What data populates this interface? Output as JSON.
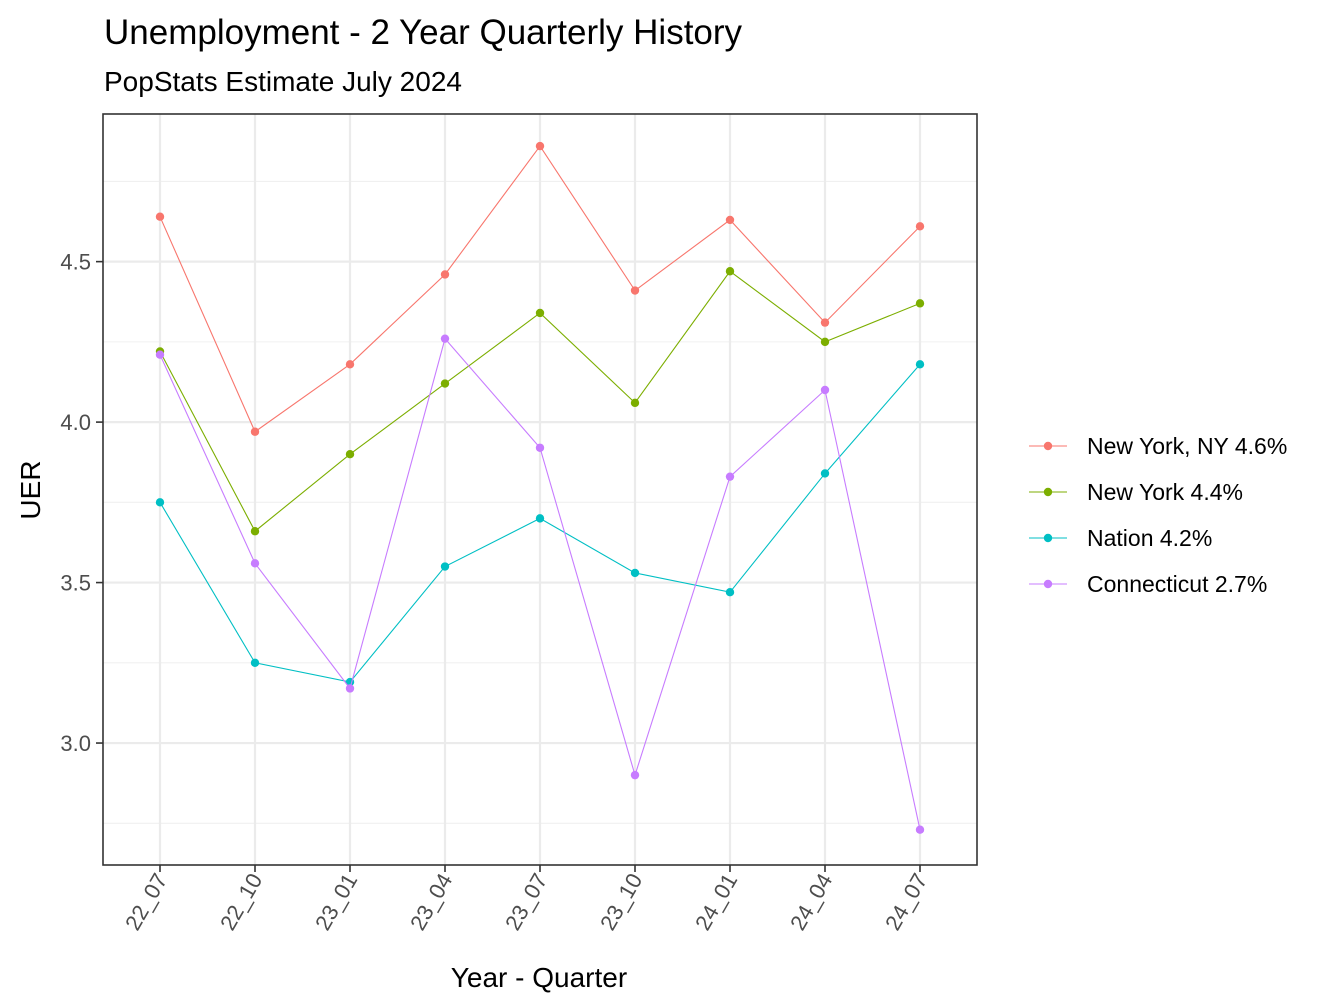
{
  "chart_data": {
    "type": "line",
    "title": "Unemployment - 2 Year Quarterly History",
    "subtitle": "PopStats Estimate July 2024",
    "xlabel": "Year - Quarter",
    "ylabel": "UER",
    "categories": [
      "22_07",
      "22_10",
      "23_01",
      "23_04",
      "23_07",
      "23_10",
      "24_01",
      "24_04",
      "24_07"
    ],
    "ylim": [
      2.62,
      4.96
    ],
    "yticks": [
      3.0,
      3.5,
      4.0,
      4.5
    ],
    "ytick_labels": [
      "3.0",
      "3.5",
      "4.0",
      "4.5"
    ],
    "grid": true,
    "legend_position": "right",
    "series": [
      {
        "name": "New York, NY 4.6%",
        "color": "#F8766D",
        "values": [
          4.64,
          3.97,
          4.18,
          4.46,
          4.86,
          4.41,
          4.63,
          4.31,
          4.61
        ]
      },
      {
        "name": "New York 4.4%",
        "color": "#7CAE00",
        "values": [
          4.22,
          3.66,
          3.9,
          4.12,
          4.34,
          4.06,
          4.47,
          4.25,
          4.37
        ]
      },
      {
        "name": "Nation 4.2%",
        "color": "#00BFC4",
        "values": [
          3.75,
          3.25,
          3.19,
          3.55,
          3.7,
          3.53,
          3.47,
          3.84,
          4.18
        ]
      },
      {
        "name": "Connecticut 2.7%",
        "color": "#C77CFF",
        "values": [
          4.21,
          3.56,
          3.17,
          4.26,
          3.92,
          2.9,
          3.83,
          4.1,
          2.73
        ]
      }
    ]
  }
}
